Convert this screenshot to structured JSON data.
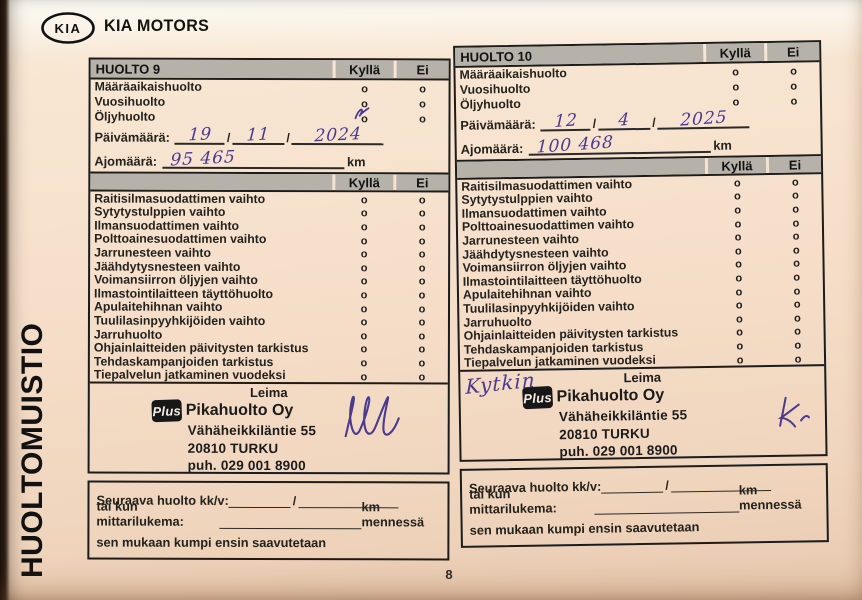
{
  "header": {
    "logo_text": "KIA",
    "brand": "KIA MOTORS"
  },
  "side_title": "HUOLTOMUISTIO",
  "page_number": "8",
  "colors": {
    "ink": "#4b3a8f",
    "header_gray": "#b6b2a9",
    "border": "#1c1c1c"
  },
  "form": {
    "col_yes": "Kyllä",
    "col_no": "Ei",
    "mark_char": "o",
    "top_items": [
      "Määräaikaishuolto",
      "Vuosihuolto",
      "Öljyhuolto"
    ],
    "date_label": "Päivämäärä:",
    "date_sep": "/",
    "odo_label": "Ajomäärä:",
    "km": "km",
    "checklist": [
      "Raitisilmasuodattimen vaihto",
      "Sytytystulppien vaihto",
      "Ilmansuodattimen vaihto",
      "Polttoainesuodattimen vaihto",
      "Jarrunesteen vaihto",
      "Jäähdytysnesteen vaihto",
      "Voimansiirron öljyjen vaihto",
      "Ilmastointilaitteen täyttöhuolto",
      "Apulaitehihnan vaihto",
      "Tuulilasinpyyhkijöiden vaihto",
      "Jarruhuolto",
      "Ohjainlaitteiden päivitysten tarkistus",
      "Tehdaskampanjoiden tarkistus",
      "Tiepalvelun jatkaminen vuodeksi"
    ],
    "leima": "Leima",
    "next_service_label": "Seuraava huolto kk/v:",
    "next_service_sep": "/",
    "odometer_by_label": "tai kun mittarilukema:",
    "km_by": "km mennessä",
    "whichever_first": "sen mukaan kumpi ensin saavutetaan"
  },
  "stamp": {
    "logo": "Plus",
    "company": "Pikahuolto Oy",
    "street": "Vähäheikkiläntie 55",
    "city": "20810 TURKU",
    "phone": "puh. 029 001 8900"
  },
  "panels": [
    {
      "title": "HUOLTO 9",
      "date_day": "19",
      "date_month": "11",
      "date_year": "2024",
      "odometer": "95 465",
      "oil_marked": true,
      "note": ""
    },
    {
      "title": "HUOLTO 10",
      "date_day": "12",
      "date_month": "4",
      "date_year": "2025",
      "odometer": "100 468",
      "oil_marked": false,
      "note": "Kytkin"
    }
  ]
}
